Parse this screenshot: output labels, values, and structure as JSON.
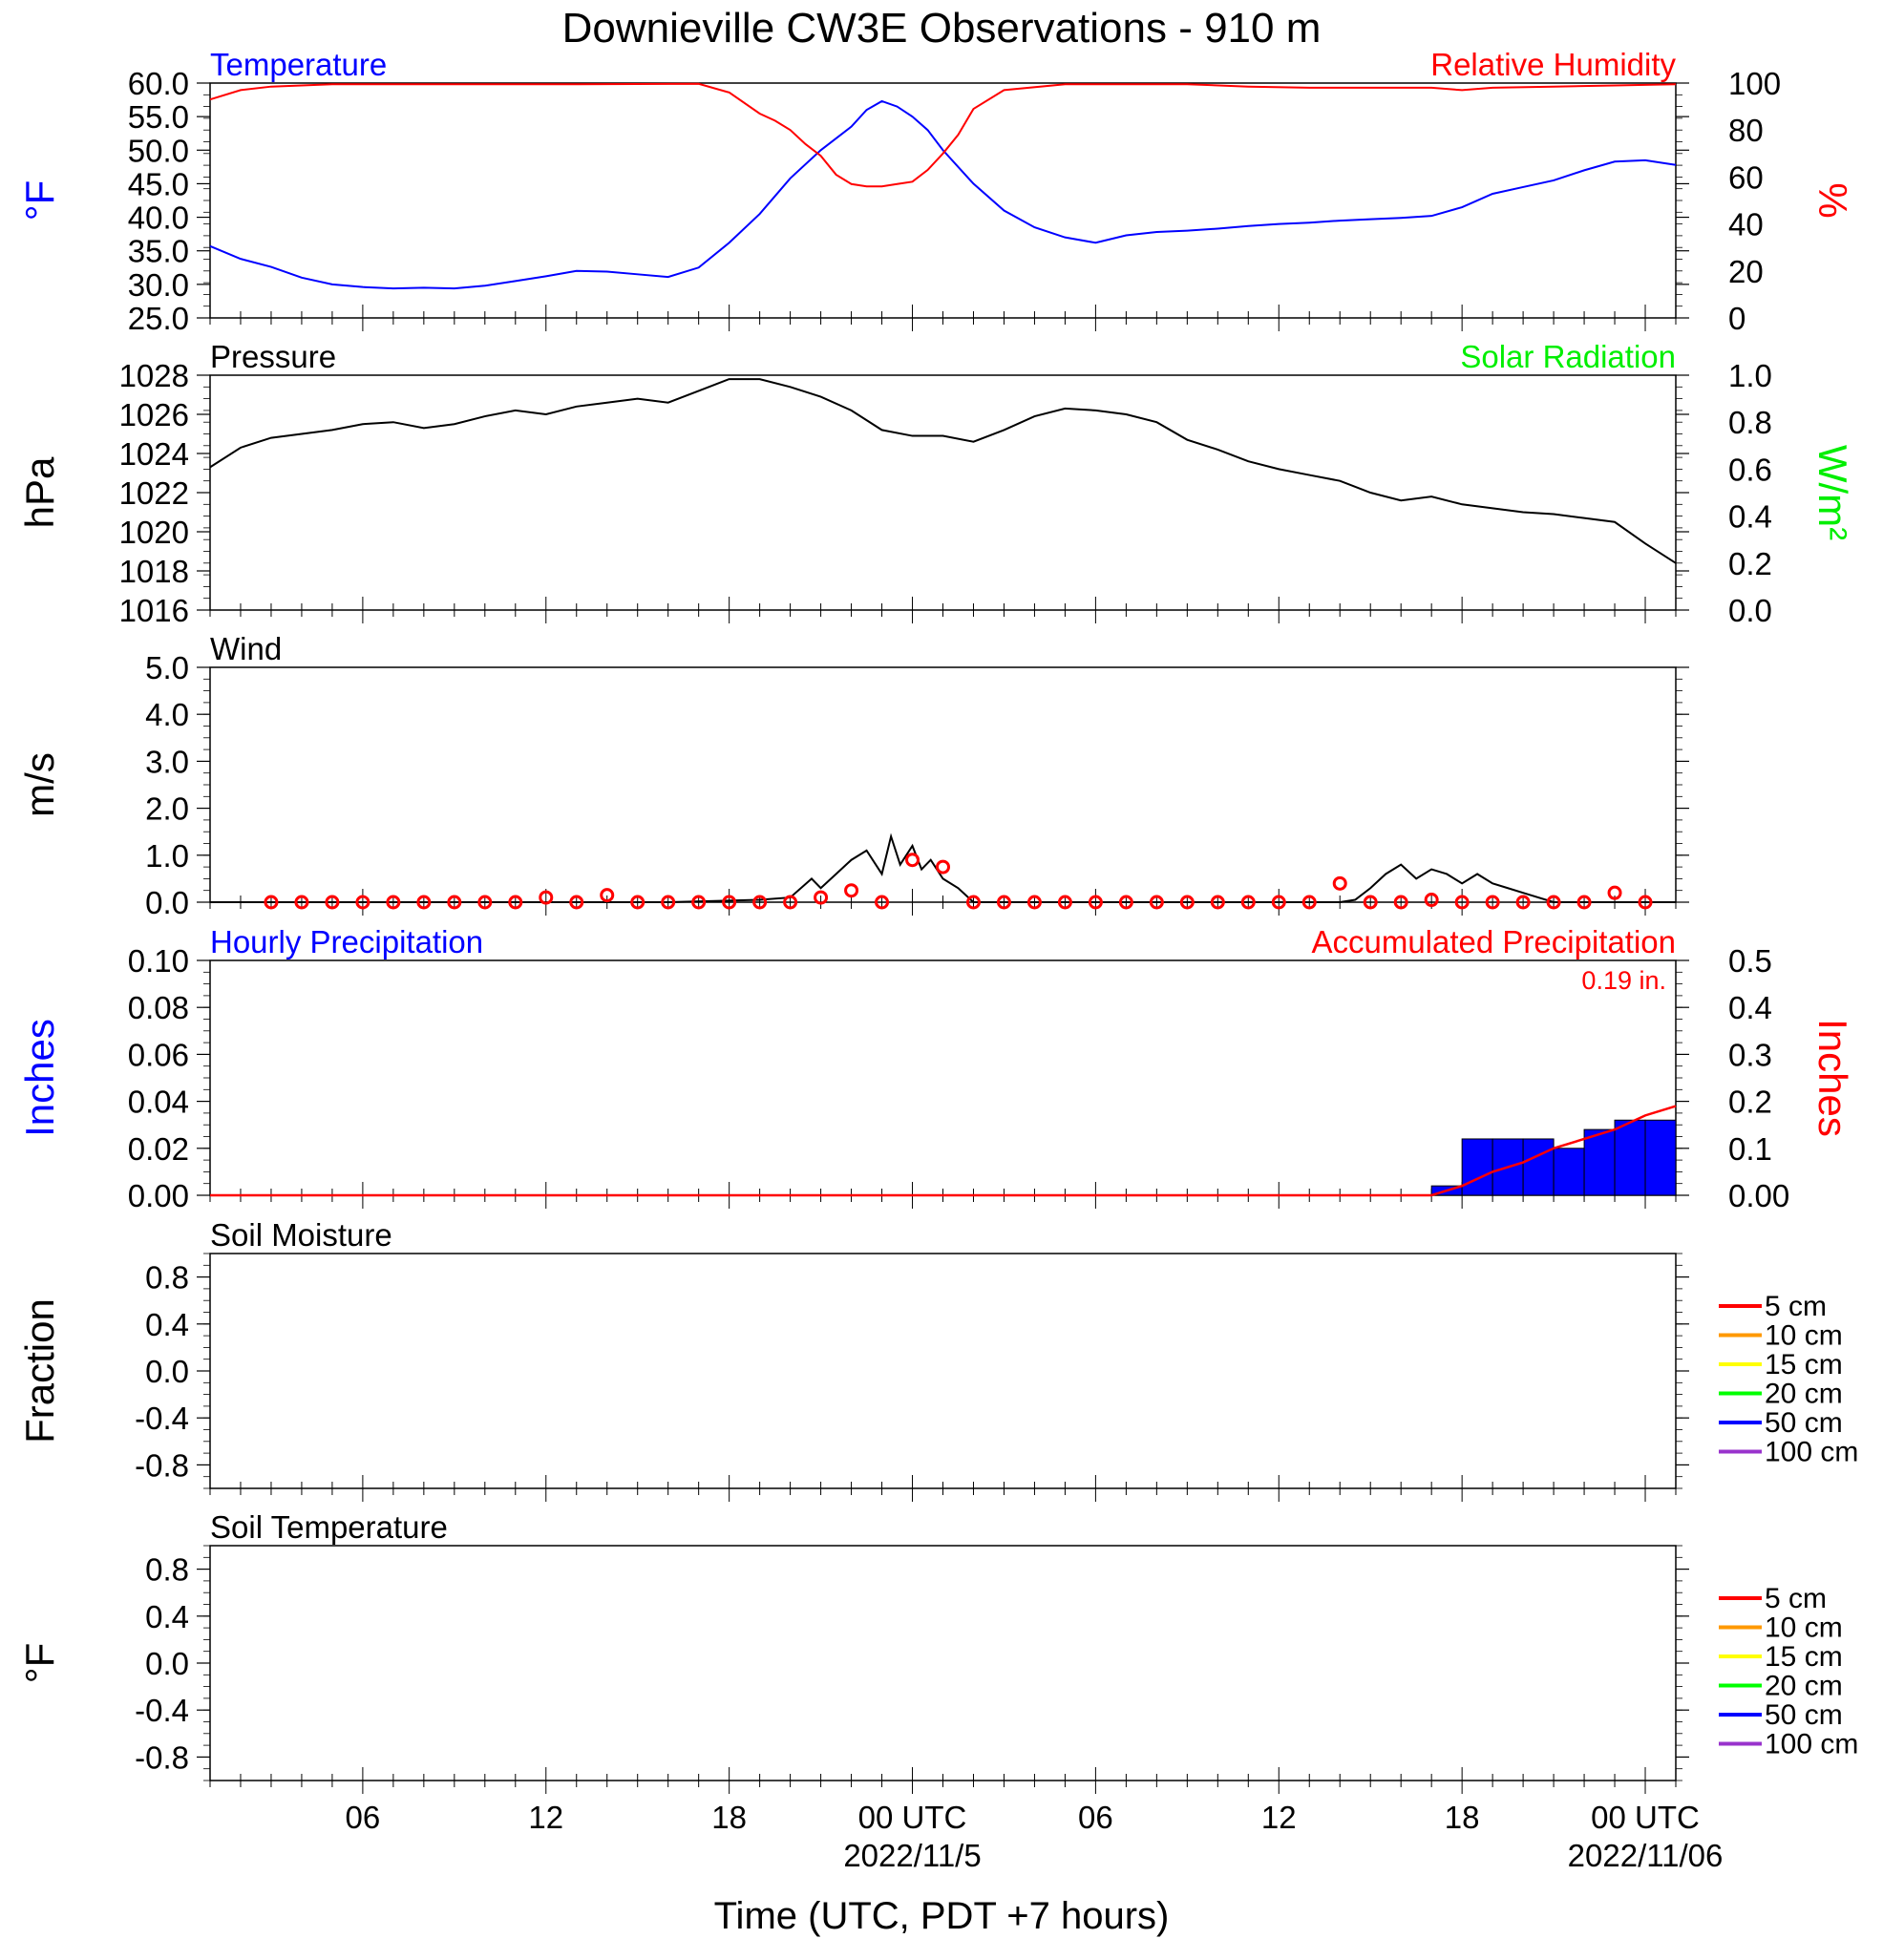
{
  "title": "Downieville CW3E Observations - 910 m",
  "chart_data": [
    {
      "type": "line",
      "panel": "temperature_rh",
      "left_title": "Temperature",
      "right_title": "Relative Humidity",
      "ylabel": "°F",
      "ylabel_right": "%",
      "ylim": [
        25,
        60
      ],
      "ylim_right": [
        0,
        100
      ],
      "yticks": [
        "60.0",
        "55.0",
        "50.0",
        "45.0",
        "40.0",
        "35.0",
        "30.0",
        "25.0"
      ],
      "yticks_right": [
        "100",
        "80",
        "60",
        "40",
        "20",
        "0"
      ],
      "series": [
        {
          "name": "Temperature",
          "axis": "left",
          "color": "#0000ff",
          "x": [
            0,
            1,
            2,
            3,
            4,
            5,
            6,
            7,
            8,
            9,
            10,
            11,
            12,
            13,
            14,
            15,
            16,
            17,
            18,
            19,
            20,
            21,
            21.5,
            22,
            22.5,
            23,
            23.5,
            24,
            25,
            26,
            27,
            28,
            29,
            30,
            31,
            32,
            33,
            34,
            35,
            36,
            37,
            38,
            39,
            40,
            41,
            42,
            43,
            44,
            45,
            46,
            47,
            48
          ],
          "y": [
            35.7,
            33.8,
            32.6,
            31.0,
            30.0,
            29.6,
            29.4,
            29.5,
            29.4,
            29.8,
            30.5,
            31.2,
            32.0,
            31.9,
            31.5,
            31.1,
            32.5,
            36.2,
            40.5,
            45.8,
            50.0,
            53.5,
            56.0,
            57.3,
            56.5,
            55.0,
            53.0,
            50.0,
            45.0,
            41.0,
            38.5,
            37.0,
            36.2,
            37.3,
            37.8,
            38.0,
            38.3,
            38.7,
            39.0,
            39.2,
            39.5,
            39.7,
            39.9,
            40.2,
            41.5,
            43.5,
            44.5,
            45.5,
            47.0,
            48.3,
            48.5,
            47.8
          ]
        },
        {
          "name": "Relative Humidity",
          "axis": "right",
          "color": "#ff0000",
          "x": [
            0,
            1,
            2,
            4,
            8,
            12,
            16,
            17,
            18,
            18.5,
            19,
            19.5,
            20,
            20.5,
            21,
            21.5,
            22,
            22.5,
            23,
            23.5,
            24,
            24.5,
            25,
            26,
            28,
            30,
            32,
            34,
            36,
            38,
            40,
            41,
            42,
            44,
            46,
            48
          ],
          "y": [
            93,
            97,
            98.5,
            99.5,
            99.5,
            99.5,
            99.7,
            96,
            87,
            84,
            80,
            74,
            69,
            61,
            57,
            56,
            56,
            57,
            58,
            63,
            70,
            78,
            89,
            97,
            99.5,
            99.5,
            99.5,
            98.5,
            98,
            98,
            98,
            97,
            98,
            98.5,
            99,
            99.5
          ]
        }
      ]
    },
    {
      "type": "line",
      "panel": "pressure_solar",
      "left_title": "Pressure",
      "right_title": "Solar Radiation",
      "ylabel": "hPa",
      "ylabel_right": "W/m²",
      "ylim": [
        1016,
        1028
      ],
      "ylim_right": [
        0,
        1
      ],
      "yticks": [
        "1028",
        "1026",
        "1024",
        "1022",
        "1020",
        "1018",
        "1016"
      ],
      "yticks_right": [
        "1.0",
        "0.8",
        "0.6",
        "0.4",
        "0.2",
        "0.0"
      ],
      "series": [
        {
          "name": "Pressure",
          "axis": "left",
          "color": "#000000",
          "x": [
            0,
            1,
            2,
            3,
            4,
            5,
            6,
            7,
            8,
            9,
            10,
            11,
            12,
            13,
            14,
            15,
            16,
            17,
            18,
            19,
            20,
            21,
            22,
            23,
            24,
            25,
            26,
            27,
            28,
            29,
            30,
            31,
            32,
            33,
            34,
            35,
            36,
            37,
            38,
            39,
            40,
            41,
            42,
            43,
            44,
            45,
            46,
            47,
            48
          ],
          "y": [
            1023.3,
            1024.3,
            1024.8,
            1025.0,
            1025.2,
            1025.5,
            1025.6,
            1025.3,
            1025.5,
            1025.9,
            1026.2,
            1026.0,
            1026.4,
            1026.6,
            1026.8,
            1026.6,
            1027.2,
            1027.8,
            1027.8,
            1027.4,
            1026.9,
            1026.2,
            1025.2,
            1024.9,
            1024.9,
            1024.6,
            1025.2,
            1025.9,
            1026.3,
            1026.2,
            1026.0,
            1025.6,
            1024.7,
            1024.2,
            1023.6,
            1023.2,
            1022.9,
            1022.6,
            1022.0,
            1021.6,
            1021.8,
            1021.4,
            1021.2,
            1021.0,
            1020.9,
            1020.7,
            1020.5,
            1019.4,
            1018.4
          ]
        }
      ]
    },
    {
      "type": "line",
      "panel": "wind",
      "left_title": "Wind",
      "ylabel": "m/s",
      "ylim": [
        0,
        5
      ],
      "yticks": [
        "5.0",
        "4.0",
        "3.0",
        "2.0",
        "1.0",
        "0.0"
      ],
      "series": [
        {
          "name": "Wind speed",
          "axis": "left",
          "color": "#000000",
          "x": [
            0,
            10,
            15,
            18,
            19,
            19.7,
            20,
            20.5,
            21,
            21.5,
            22,
            22.3,
            22.6,
            23,
            23.3,
            23.6,
            24,
            24.5,
            25,
            30,
            35,
            37,
            37.5,
            38,
            38.5,
            39,
            39.5,
            40,
            40.5,
            41,
            41.5,
            42,
            42.5,
            43,
            44,
            48
          ],
          "y": [
            0,
            0,
            0,
            0.05,
            0.1,
            0.5,
            0.3,
            0.6,
            0.9,
            1.1,
            0.6,
            1.4,
            0.8,
            1.2,
            0.7,
            0.9,
            0.5,
            0.3,
            0,
            0,
            0,
            0,
            0.05,
            0.3,
            0.6,
            0.8,
            0.5,
            0.7,
            0.6,
            0.4,
            0.6,
            0.4,
            0.3,
            0.2,
            0,
            0
          ]
        },
        {
          "name": "Direction markers",
          "axis": "left",
          "color": "#ff0000",
          "x": [
            2,
            3,
            4,
            5,
            6,
            7,
            8,
            9,
            10,
            11,
            12,
            13,
            14,
            15,
            16,
            17,
            18,
            19,
            20,
            21,
            22,
            23,
            24,
            25,
            26,
            27,
            28,
            29,
            30,
            31,
            32,
            33,
            34,
            35,
            36,
            37,
            38,
            39,
            40,
            41,
            42,
            43,
            44,
            45,
            46,
            47
          ],
          "y": [
            0,
            0,
            0,
            0,
            0,
            0,
            0,
            0,
            0,
            0.1,
            0,
            0.15,
            0,
            0,
            0,
            0,
            0,
            0,
            0.1,
            0.25,
            0,
            0.9,
            0.75,
            0,
            0,
            0,
            0,
            0,
            0,
            0,
            0,
            0,
            0,
            0,
            0,
            0.4,
            0,
            0,
            0.05,
            0,
            0,
            0,
            0,
            0,
            0.2,
            0
          ]
        }
      ]
    },
    {
      "type": "bar",
      "panel": "precipitation",
      "left_title": "Hourly Precipitation",
      "right_title": "Accumulated Precipitation",
      "annotation": "0.19 in.",
      "ylabel": "Inches",
      "ylabel_right": "Inches",
      "ylim": [
        0,
        0.1
      ],
      "ylim_right": [
        0,
        0.5
      ],
      "yticks": [
        "0.10",
        "0.08",
        "0.06",
        "0.04",
        "0.02",
        "0.00"
      ],
      "yticks_right": [
        "0.5",
        "0.4",
        "0.3",
        "0.2",
        "0.1",
        "0.00"
      ],
      "x": [
        40,
        41,
        42,
        43,
        44,
        45,
        46,
        47
      ],
      "series": [
        {
          "name": "Hourly Precipitation",
          "axis": "left",
          "color": "#0000ff",
          "values": [
            0.004,
            0.024,
            0.024,
            0.024,
            0.02,
            0.028,
            0.032,
            0.032
          ]
        },
        {
          "name": "Accumulated Precipitation",
          "axis": "right",
          "color": "#ff0000",
          "x": [
            0,
            40,
            41,
            42,
            43,
            44,
            45,
            46,
            47,
            48
          ],
          "y": [
            0,
            0,
            0.02,
            0.05,
            0.07,
            0.1,
            0.12,
            0.14,
            0.17,
            0.19
          ]
        }
      ]
    },
    {
      "type": "line",
      "panel": "soil_moisture",
      "left_title": "Soil Moisture",
      "ylabel": "Fraction",
      "ylim": [
        -1,
        1
      ],
      "yticks": [
        "0.8",
        "0.4",
        "0.0",
        "-0.4",
        "-0.8"
      ],
      "legend": [
        {
          "label": "5 cm",
          "color": "#ff0000"
        },
        {
          "label": "10 cm",
          "color": "#ff9900"
        },
        {
          "label": "15 cm",
          "color": "#ffff00"
        },
        {
          "label": "20 cm",
          "color": "#00ff00"
        },
        {
          "label": "50 cm",
          "color": "#0000ff"
        },
        {
          "label": "100 cm",
          "color": "#9933cc"
        }
      ]
    },
    {
      "type": "line",
      "panel": "soil_temperature",
      "left_title": "Soil Temperature",
      "ylabel": "°F",
      "ylim": [
        -1,
        1
      ],
      "yticks": [
        "0.8",
        "0.4",
        "0.0",
        "-0.4",
        "-0.8"
      ],
      "legend": [
        {
          "label": "5 cm",
          "color": "#ff0000"
        },
        {
          "label": "10 cm",
          "color": "#ff9900"
        },
        {
          "label": "15 cm",
          "color": "#ffff00"
        },
        {
          "label": "20 cm",
          "color": "#00ff00"
        },
        {
          "label": "50 cm",
          "color": "#0000ff"
        },
        {
          "label": "100 cm",
          "color": "#9933cc"
        }
      ]
    }
  ],
  "x_axis": {
    "xlim": [
      0,
      48
    ],
    "major_ticks": [
      {
        "x": 5,
        "label": "06"
      },
      {
        "x": 11,
        "label": "12"
      },
      {
        "x": 17,
        "label": "18"
      },
      {
        "x": 23,
        "label": "00 UTC",
        "date": "2022/11/5"
      },
      {
        "x": 29,
        "label": "06"
      },
      {
        "x": 35,
        "label": "12"
      },
      {
        "x": 41,
        "label": "18"
      },
      {
        "x": 47,
        "label": "00 UTC",
        "date": "2022/11/06"
      }
    ],
    "xlabel": "Time (UTC, PDT +7 hours)"
  }
}
